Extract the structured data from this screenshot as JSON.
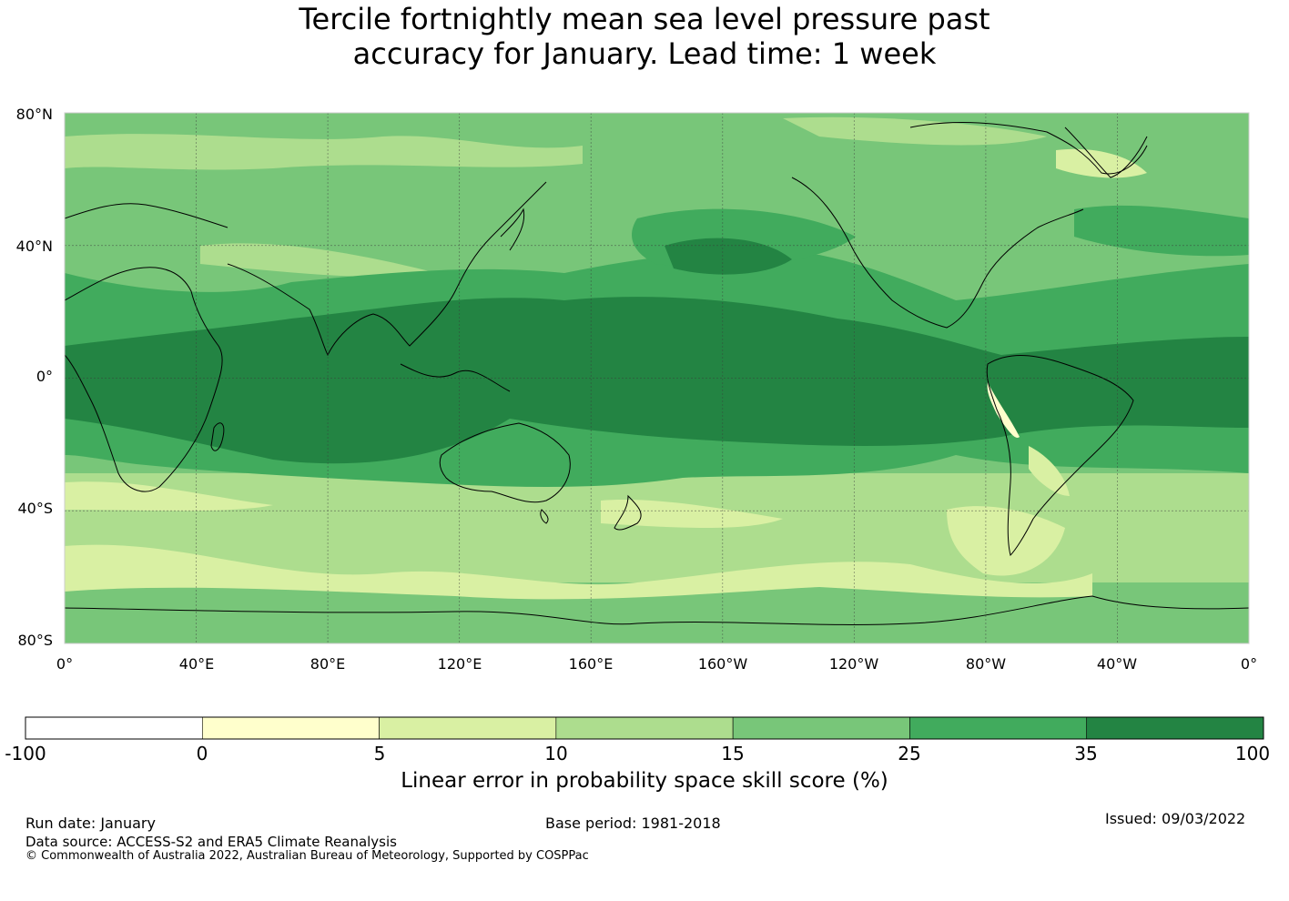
{
  "title_lines": [
    "Tercile fortnightly mean sea level pressure past",
    "accuracy for January. Lead time: 1 week"
  ],
  "map": {
    "lat_labels": [
      "80°N",
      "40°N",
      "0°",
      "40°S",
      "80°S"
    ],
    "lon_labels": [
      "0°",
      "40°E",
      "80°E",
      "120°E",
      "160°E",
      "160°W",
      "120°W",
      "80°W",
      "40°W",
      "0°"
    ],
    "ocean_base_color": "#78c679",
    "land_outline_color": "#000000"
  },
  "colorbar": {
    "ticks": [
      "-100",
      "0",
      "5",
      "10",
      "15",
      "25",
      "35",
      "100"
    ],
    "colors": [
      "#ffffff",
      "#ffffcc",
      "#d9f0a3",
      "#addd8e",
      "#78c679",
      "#41ab5d",
      "#238443"
    ],
    "label": "Linear error in probability space skill score (%)"
  },
  "footer": {
    "run_date": "Run date: January",
    "base_period": "Base period: 1981-2018",
    "issued": "Issued: 09/03/2022",
    "data_source": "Data source: ACCESS-S2 and ERA5 Climate Reanalysis",
    "copyright": "© Commonwealth of Australia 2022, Australian Bureau of Meteorology, Supported by COSPPac"
  }
}
